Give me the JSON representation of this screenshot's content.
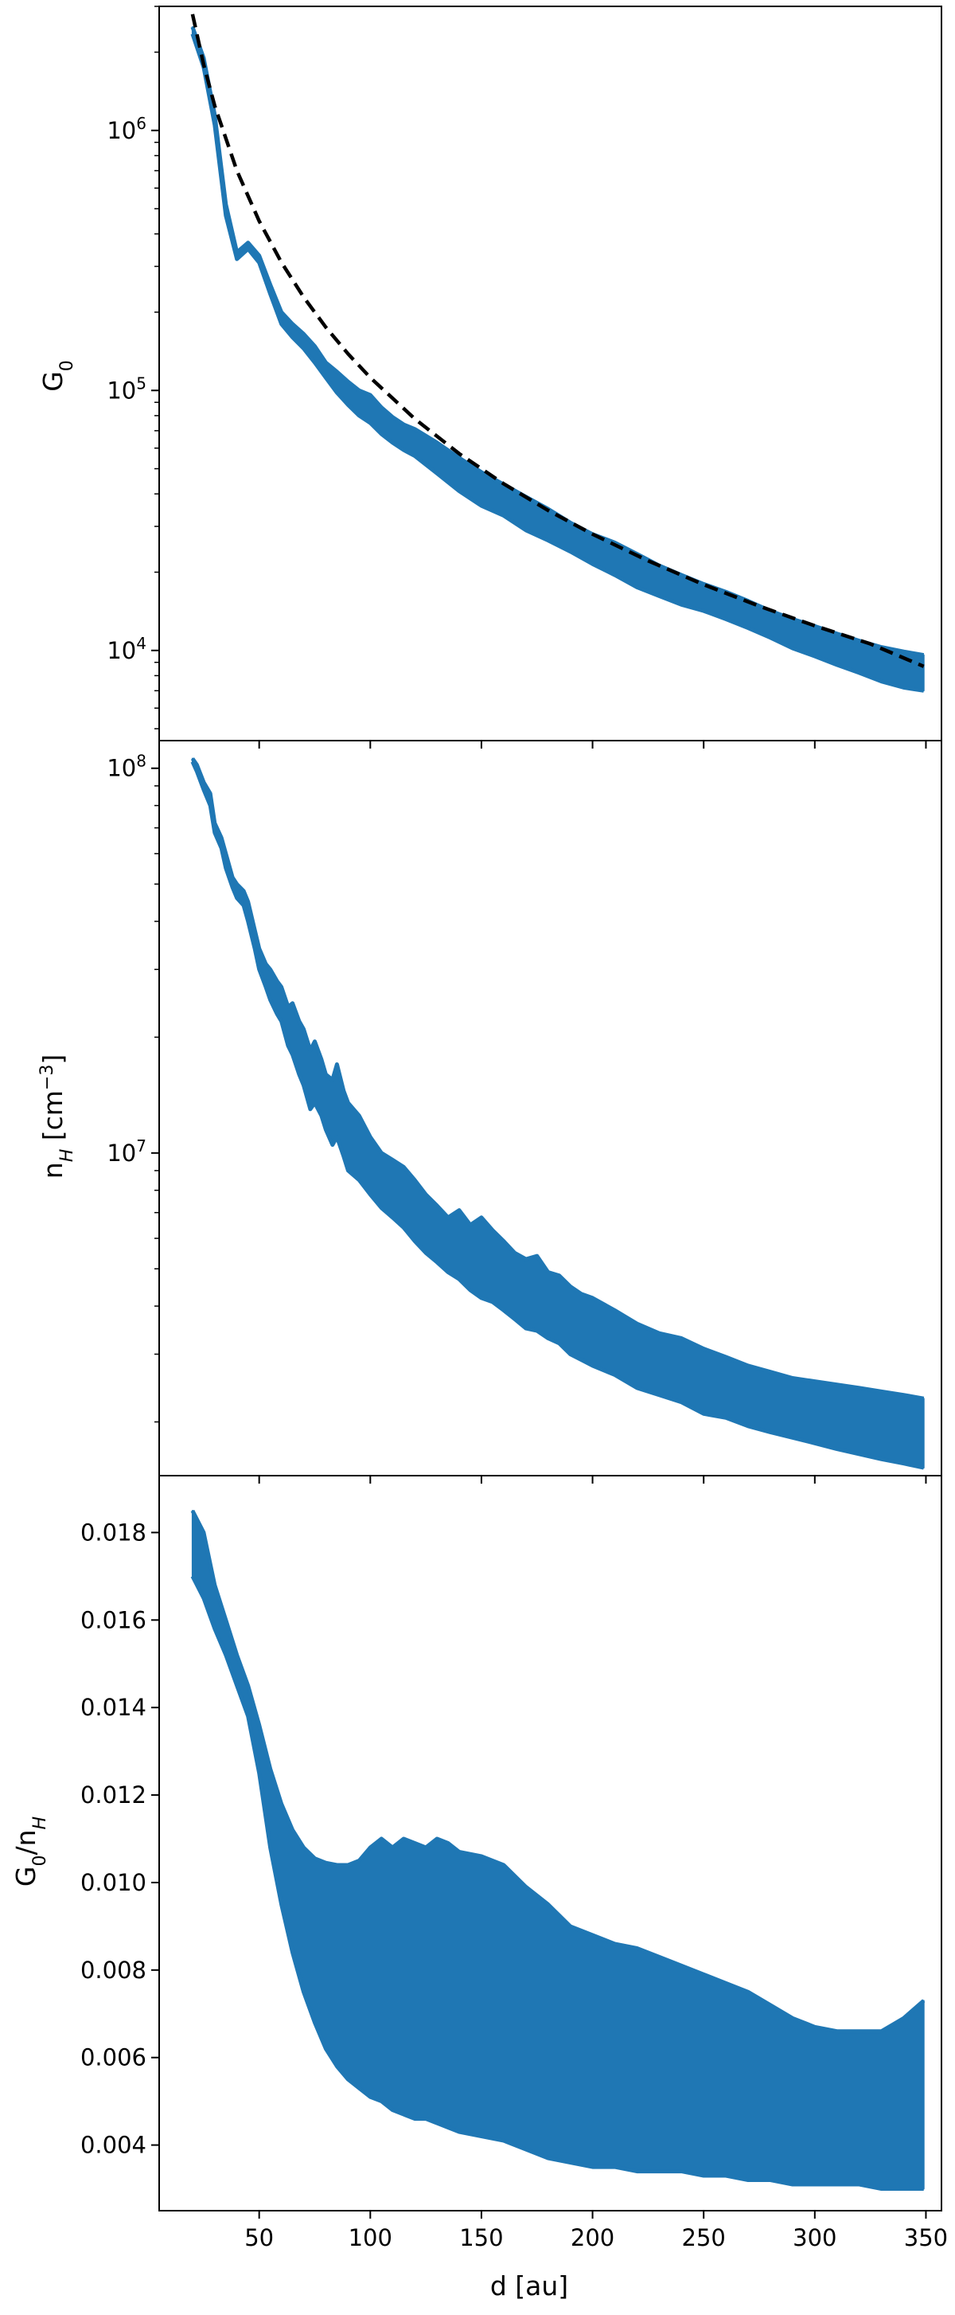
{
  "colors": {
    "band": "#1f77b4",
    "fit": "#000000",
    "axes": "#000000",
    "background": "#ffffff"
  },
  "chart_data": [
    {
      "type": "area",
      "panel": "top",
      "ylabel": {
        "main": "G",
        "sub": "0"
      },
      "yscale": "log",
      "ylim": [
        4500,
        3000000
      ],
      "xlim": [
        5,
        357
      ],
      "yticks": [
        {
          "value": 10000,
          "base": "10",
          "exp": "4"
        },
        {
          "value": 100000,
          "base": "10",
          "exp": "5"
        },
        {
          "value": 1000000,
          "base": "10",
          "exp": "6"
        }
      ],
      "series": [
        {
          "kind": "band",
          "x": [
            20,
            25,
            30,
            35,
            40,
            45,
            50,
            55,
            60,
            65,
            70,
            75,
            80,
            85,
            90,
            95,
            100,
            105,
            110,
            115,
            120,
            130,
            140,
            150,
            160,
            170,
            180,
            190,
            200,
            210,
            220,
            230,
            240,
            250,
            260,
            270,
            280,
            290,
            300,
            310,
            320,
            330,
            340,
            349
          ],
          "upper": [
            2500000,
            1900000,
            1150000,
            520000,
            340000,
            370000,
            330000,
            255000,
            200000,
            180000,
            165000,
            148000,
            128000,
            118000,
            108000,
            100000,
            96000,
            86000,
            79000,
            74000,
            71000,
            63000,
            55000,
            48500,
            43500,
            39000,
            35000,
            31000,
            28000,
            26000,
            23500,
            21200,
            19500,
            18000,
            16800,
            15500,
            14200,
            13200,
            12400,
            11600,
            10900,
            10300,
            9900,
            9600
          ],
          "lower": [
            2350000,
            1750000,
            1050000,
            470000,
            320000,
            350000,
            310000,
            235000,
            180000,
            160000,
            145000,
            128000,
            112000,
            98000,
            88000,
            80000,
            75000,
            68000,
            63000,
            59000,
            56000,
            48000,
            41000,
            36000,
            33000,
            29000,
            26500,
            24000,
            21500,
            19500,
            17500,
            16200,
            15000,
            14200,
            13200,
            12200,
            11200,
            10200,
            9500,
            8800,
            8200,
            7600,
            7200,
            7000
          ]
        },
        {
          "kind": "power-law-fit",
          "style": "dashed",
          "x": [
            20,
            25,
            30,
            40,
            50,
            60,
            70,
            80,
            90,
            100,
            120,
            140,
            160,
            180,
            200,
            225,
            250,
            275,
            300,
            325,
            349
          ],
          "y": [
            2800000,
            1792000,
            1244000,
            700000,
            448000,
            311000,
            228500,
            175000,
            138200,
            112000,
            77800,
            57100,
            43750,
            34570,
            28000,
            22120,
            17920,
            14810,
            12440,
            10600,
            8680
          ]
        }
      ]
    },
    {
      "type": "area",
      "panel": "middle",
      "ylabel": {
        "main": "n",
        "sub": "H",
        "rest": " [cm",
        "sup": "−3",
        "close": "]"
      },
      "yscale": "log",
      "ylim": [
        1450000,
        118000000
      ],
      "xlim": [
        5,
        357
      ],
      "yticks": [
        {
          "value": 10000000,
          "base": "10",
          "exp": "7"
        },
        {
          "value": 100000000,
          "base": "10",
          "exp": "8"
        }
      ],
      "series": [
        {
          "kind": "band",
          "x": [
            20,
            22,
            25,
            28,
            30,
            33,
            35,
            38,
            40,
            43,
            45,
            48,
            50,
            53,
            55,
            58,
            60,
            63,
            65,
            68,
            70,
            73,
            75,
            78,
            80,
            83,
            85,
            88,
            90,
            95,
            100,
            105,
            110,
            115,
            120,
            125,
            130,
            135,
            140,
            145,
            150,
            155,
            160,
            165,
            170,
            175,
            180,
            185,
            190,
            195,
            200,
            210,
            220,
            230,
            240,
            250,
            260,
            270,
            280,
            290,
            300,
            310,
            320,
            330,
            340,
            349
          ],
          "upper": [
            106000000,
            102000000,
            92000000,
            86000000,
            72000000,
            66000000,
            60000000,
            52000000,
            50000000,
            48000000,
            45000000,
            38000000,
            34000000,
            31000000,
            30000000,
            28000000,
            27000000,
            24000000,
            24500000,
            22000000,
            21000000,
            18500000,
            19500000,
            17500000,
            16000000,
            15500000,
            17000000,
            14500000,
            13500000,
            12500000,
            11000000,
            10000000,
            9600000,
            9200000,
            8500000,
            7800000,
            7300000,
            6800000,
            7100000,
            6500000,
            6800000,
            6300000,
            5900000,
            5500000,
            5300000,
            5400000,
            4900000,
            4800000,
            4500000,
            4300000,
            4200000,
            3900000,
            3600000,
            3400000,
            3300000,
            3100000,
            2950000,
            2800000,
            2700000,
            2600000,
            2550000,
            2500000,
            2450000,
            2400000,
            2350000,
            2300000
          ],
          "lower": [
            104000000,
            98000000,
            88000000,
            80000000,
            68000000,
            62000000,
            55000000,
            49000000,
            46000000,
            44000000,
            40000000,
            34000000,
            30000000,
            27000000,
            25000000,
            23000000,
            22000000,
            19000000,
            18000000,
            16000000,
            15000000,
            13000000,
            13500000,
            12500000,
            11500000,
            10500000,
            11000000,
            9800000,
            9000000,
            8500000,
            7800000,
            7200000,
            6800000,
            6400000,
            5900000,
            5500000,
            5200000,
            4900000,
            4700000,
            4400000,
            4200000,
            4100000,
            3900000,
            3700000,
            3500000,
            3450000,
            3300000,
            3200000,
            3000000,
            2900000,
            2800000,
            2650000,
            2450000,
            2350000,
            2250000,
            2100000,
            2050000,
            1950000,
            1880000,
            1820000,
            1760000,
            1700000,
            1650000,
            1600000,
            1560000,
            1520000
          ]
        }
      ]
    },
    {
      "type": "area",
      "panel": "bottom",
      "xlabel": "d [au]",
      "ylabel": {
        "main": "G",
        "sub": "0",
        "rest": "/n",
        "sub2": "H"
      },
      "yscale": "linear",
      "ylim": [
        0.0025,
        0.0193
      ],
      "xlim": [
        5,
        357
      ],
      "xticks": [
        50,
        100,
        150,
        200,
        250,
        300,
        350
      ],
      "yticks": [
        0.004,
        0.006,
        0.008,
        0.01,
        0.012,
        0.014,
        0.016,
        0.018
      ],
      "ytick_labels": [
        "0.004",
        "0.006",
        "0.008",
        "0.010",
        "0.012",
        "0.014",
        "0.016",
        "0.018"
      ],
      "series": [
        {
          "kind": "band",
          "x": [
            20,
            25,
            30,
            35,
            40,
            45,
            50,
            55,
            60,
            65,
            70,
            75,
            80,
            85,
            90,
            95,
            100,
            105,
            110,
            115,
            120,
            125,
            130,
            135,
            140,
            150,
            160,
            170,
            180,
            190,
            200,
            210,
            220,
            230,
            240,
            250,
            260,
            270,
            280,
            290,
            300,
            310,
            320,
            330,
            340,
            349
          ],
          "upper": [
            0.0185,
            0.018,
            0.0168,
            0.016,
            0.0152,
            0.0145,
            0.0136,
            0.0126,
            0.0118,
            0.0112,
            0.0108,
            0.01055,
            0.01045,
            0.0104,
            0.0104,
            0.0105,
            0.0108,
            0.011,
            0.0108,
            0.011,
            0.0109,
            0.0108,
            0.011,
            0.0109,
            0.0107,
            0.0106,
            0.0104,
            0.0099,
            0.0095,
            0.009,
            0.0088,
            0.0086,
            0.0085,
            0.0083,
            0.0081,
            0.0079,
            0.0077,
            0.0075,
            0.0072,
            0.0069,
            0.0067,
            0.0066,
            0.0066,
            0.0066,
            0.0069,
            0.0073
          ],
          "lower": [
            0.017,
            0.0165,
            0.0158,
            0.0152,
            0.0145,
            0.0138,
            0.0125,
            0.0108,
            0.0095,
            0.0084,
            0.0075,
            0.0068,
            0.0062,
            0.0058,
            0.0055,
            0.0053,
            0.0051,
            0.005,
            0.0048,
            0.0047,
            0.0046,
            0.0046,
            0.0045,
            0.0044,
            0.0043,
            0.0042,
            0.0041,
            0.0039,
            0.0037,
            0.0036,
            0.0035,
            0.0035,
            0.0034,
            0.0034,
            0.0034,
            0.0033,
            0.0033,
            0.0032,
            0.0032,
            0.0031,
            0.0031,
            0.0031,
            0.0031,
            0.003,
            0.003,
            0.003
          ]
        }
      ]
    }
  ]
}
